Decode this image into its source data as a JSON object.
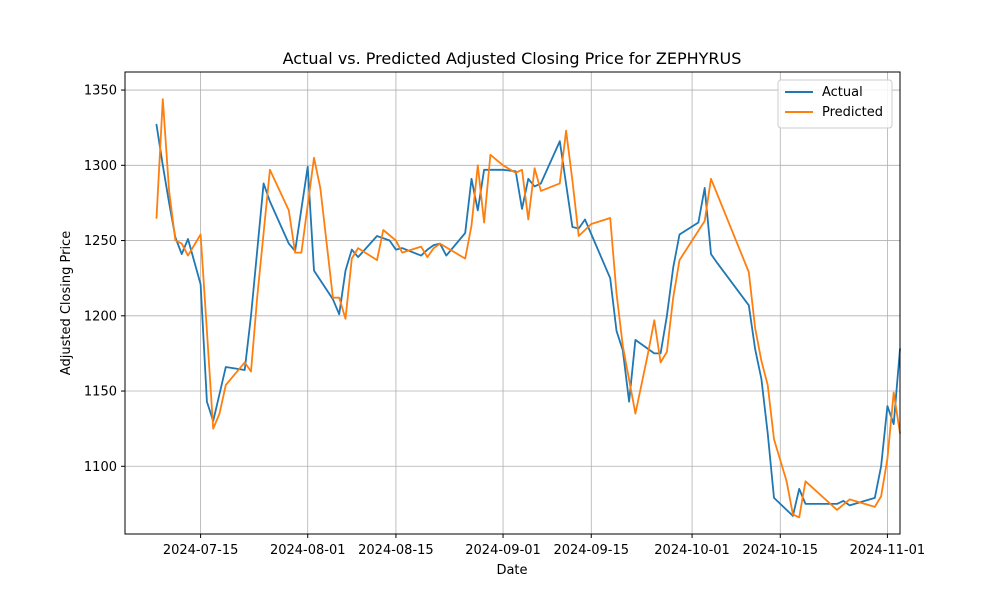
{
  "chart_data": {
    "type": "line",
    "title": "Actual vs. Predicted Adjusted Closing Price for ZEPHYRUS",
    "xlabel": "Date",
    "ylabel": "Adjusted Closing Price",
    "xlim": [
      "2024-07-03",
      "2024-11-03"
    ],
    "ylim": [
      1055,
      1362
    ],
    "grid": true,
    "legend_position": "top-right",
    "x_ticks": [
      "2024-07-15",
      "2024-08-01",
      "2024-08-15",
      "2024-09-01",
      "2024-09-15",
      "2024-10-01",
      "2024-10-15",
      "2024-11-01"
    ],
    "y_ticks": [
      1100,
      1150,
      1200,
      1250,
      1300,
      1350
    ],
    "series": [
      {
        "name": "Actual",
        "color": "#1f77b4",
        "points": [
          [
            "2024-07-08",
            1327
          ],
          [
            "2024-07-09",
            1300
          ],
          [
            "2024-07-10",
            1275
          ],
          [
            "2024-07-11",
            1252
          ],
          [
            "2024-07-12",
            1241
          ],
          [
            "2024-07-13",
            1251
          ],
          [
            "2024-07-15",
            1221
          ],
          [
            "2024-07-16",
            1143
          ],
          [
            "2024-07-17",
            1130
          ],
          [
            "2024-07-19",
            1166
          ],
          [
            "2024-07-22",
            1164
          ],
          [
            "2024-07-23",
            1200
          ],
          [
            "2024-07-25",
            1288
          ],
          [
            "2024-07-26",
            1276
          ],
          [
            "2024-07-29",
            1248
          ],
          [
            "2024-07-30",
            1243
          ],
          [
            "2024-08-01",
            1299
          ],
          [
            "2024-08-02",
            1230
          ],
          [
            "2024-08-05",
            1211
          ],
          [
            "2024-08-06",
            1201
          ],
          [
            "2024-08-07",
            1230
          ],
          [
            "2024-08-08",
            1244
          ],
          [
            "2024-08-09",
            1239
          ],
          [
            "2024-08-12",
            1253
          ],
          [
            "2024-08-14",
            1250
          ],
          [
            "2024-08-15",
            1244
          ],
          [
            "2024-08-16",
            1245
          ],
          [
            "2024-08-19",
            1240
          ],
          [
            "2024-08-20",
            1244
          ],
          [
            "2024-08-21",
            1247
          ],
          [
            "2024-08-22",
            1248
          ],
          [
            "2024-08-23",
            1240
          ],
          [
            "2024-08-26",
            1255
          ],
          [
            "2024-08-27",
            1291
          ],
          [
            "2024-08-28",
            1270
          ],
          [
            "2024-08-29",
            1297
          ],
          [
            "2024-09-01",
            1297
          ],
          [
            "2024-09-03",
            1296
          ],
          [
            "2024-09-04",
            1271
          ],
          [
            "2024-09-05",
            1291
          ],
          [
            "2024-09-06",
            1286
          ],
          [
            "2024-09-07",
            1288
          ],
          [
            "2024-09-10",
            1316
          ],
          [
            "2024-09-12",
            1259
          ],
          [
            "2024-09-13",
            1258
          ],
          [
            "2024-09-14",
            1264
          ],
          [
            "2024-09-18",
            1225
          ],
          [
            "2024-09-19",
            1190
          ],
          [
            "2024-09-20",
            1177
          ],
          [
            "2024-09-21",
            1143
          ],
          [
            "2024-09-22",
            1184
          ],
          [
            "2024-09-25",
            1175
          ],
          [
            "2024-09-26",
            1175
          ],
          [
            "2024-09-27",
            1200
          ],
          [
            "2024-09-28",
            1232
          ],
          [
            "2024-09-29",
            1254
          ],
          [
            "2024-10-02",
            1262
          ],
          [
            "2024-10-03",
            1285
          ],
          [
            "2024-10-04",
            1241
          ],
          [
            "2024-10-05",
            1235
          ],
          [
            "2024-10-10",
            1207
          ],
          [
            "2024-10-11",
            1178
          ],
          [
            "2024-10-12",
            1158
          ],
          [
            "2024-10-13",
            1122
          ],
          [
            "2024-10-14",
            1079
          ],
          [
            "2024-10-17",
            1067
          ],
          [
            "2024-10-18",
            1085
          ],
          [
            "2024-10-19",
            1075
          ],
          [
            "2024-10-24",
            1075
          ],
          [
            "2024-10-25",
            1077
          ],
          [
            "2024-10-26",
            1074
          ],
          [
            "2024-10-30",
            1079
          ],
          [
            "2024-10-31",
            1100
          ],
          [
            "2024-11-01",
            1140
          ],
          [
            "2024-11-02",
            1128
          ],
          [
            "2024-11-03",
            1178
          ]
        ]
      },
      {
        "name": "Predicted",
        "color": "#ff7f0e",
        "points": [
          [
            "2024-07-08",
            1265
          ],
          [
            "2024-07-09",
            1344
          ],
          [
            "2024-07-10",
            1283
          ],
          [
            "2024-07-11",
            1250
          ],
          [
            "2024-07-12",
            1248
          ],
          [
            "2024-07-13",
            1240
          ],
          [
            "2024-07-15",
            1254
          ],
          [
            "2024-07-16",
            1190
          ],
          [
            "2024-07-17",
            1125
          ],
          [
            "2024-07-18",
            1135
          ],
          [
            "2024-07-19",
            1154
          ],
          [
            "2024-07-22",
            1169
          ],
          [
            "2024-07-23",
            1163
          ],
          [
            "2024-07-24",
            1213
          ],
          [
            "2024-07-26",
            1297
          ],
          [
            "2024-07-29",
            1270
          ],
          [
            "2024-07-30",
            1242
          ],
          [
            "2024-07-31",
            1242
          ],
          [
            "2024-08-02",
            1305
          ],
          [
            "2024-08-03",
            1285
          ],
          [
            "2024-08-05",
            1212
          ],
          [
            "2024-08-06",
            1212
          ],
          [
            "2024-08-07",
            1198
          ],
          [
            "2024-08-08",
            1238
          ],
          [
            "2024-08-09",
            1245
          ],
          [
            "2024-08-12",
            1237
          ],
          [
            "2024-08-13",
            1257
          ],
          [
            "2024-08-15",
            1250
          ],
          [
            "2024-08-16",
            1242
          ],
          [
            "2024-08-19",
            1246
          ],
          [
            "2024-08-20",
            1239
          ],
          [
            "2024-08-21",
            1245
          ],
          [
            "2024-08-22",
            1248
          ],
          [
            "2024-08-26",
            1238
          ],
          [
            "2024-08-27",
            1260
          ],
          [
            "2024-08-28",
            1300
          ],
          [
            "2024-08-29",
            1262
          ],
          [
            "2024-08-30",
            1307
          ],
          [
            "2024-09-01",
            1300
          ],
          [
            "2024-09-03",
            1295
          ],
          [
            "2024-09-04",
            1297
          ],
          [
            "2024-09-05",
            1264
          ],
          [
            "2024-09-06",
            1298
          ],
          [
            "2024-09-07",
            1283
          ],
          [
            "2024-09-10",
            1288
          ],
          [
            "2024-09-11",
            1323
          ],
          [
            "2024-09-12",
            1290
          ],
          [
            "2024-09-13",
            1253
          ],
          [
            "2024-09-15",
            1261
          ],
          [
            "2024-09-18",
            1265
          ],
          [
            "2024-09-19",
            1215
          ],
          [
            "2024-09-20",
            1180
          ],
          [
            "2024-09-22",
            1135
          ],
          [
            "2024-09-24",
            1175
          ],
          [
            "2024-09-25",
            1197
          ],
          [
            "2024-09-26",
            1169
          ],
          [
            "2024-09-27",
            1176
          ],
          [
            "2024-09-28",
            1212
          ],
          [
            "2024-09-29",
            1237
          ],
          [
            "2024-10-03",
            1263
          ],
          [
            "2024-10-04",
            1291
          ],
          [
            "2024-10-10",
            1229
          ],
          [
            "2024-10-11",
            1192
          ],
          [
            "2024-10-12",
            1170
          ],
          [
            "2024-10-13",
            1154
          ],
          [
            "2024-10-14",
            1118
          ],
          [
            "2024-10-16",
            1090
          ],
          [
            "2024-10-17",
            1068
          ],
          [
            "2024-10-18",
            1066
          ],
          [
            "2024-10-19",
            1090
          ],
          [
            "2024-10-24",
            1071
          ],
          [
            "2024-10-26",
            1078
          ],
          [
            "2024-10-30",
            1073
          ],
          [
            "2024-10-31",
            1080
          ],
          [
            "2024-11-01",
            1105
          ],
          [
            "2024-11-02",
            1149
          ],
          [
            "2024-11-03",
            1122
          ]
        ]
      }
    ]
  }
}
